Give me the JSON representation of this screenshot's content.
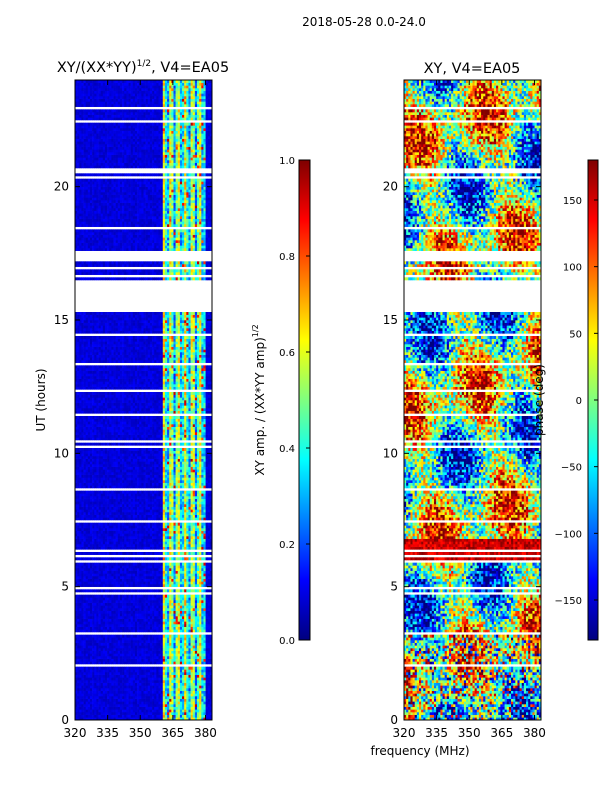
{
  "suptitle": "2018-05-28 0.0-24.0",
  "xlabel": "frequency (MHz)",
  "chart_data": [
    {
      "type": "heatmap",
      "title_main": "XY/(XX*YY)",
      "title_sup": "1/2",
      "title_tail": ", V4=EA05",
      "ylabel": "UT (hours)",
      "xlim": [
        320,
        383
      ],
      "ylim": [
        0,
        24
      ],
      "xticks": [
        320,
        335,
        350,
        365,
        380
      ],
      "yticks": [
        0,
        5,
        10,
        15,
        20
      ],
      "colorbar": {
        "label": "XY amp. / (XX*YY amp)",
        "label_sup": "1/2",
        "range": [
          0.0,
          1.0
        ],
        "ticks": [
          "0.0",
          "0.2",
          "0.4",
          "0.6",
          "0.8",
          "1.0"
        ]
      },
      "gaps_ut": [
        [
          15.3,
          16.5
        ]
      ],
      "bright_band_mhz": [
        360,
        380
      ]
    },
    {
      "type": "heatmap",
      "title": "XY, V4=EA05",
      "xlim": [
        320,
        383
      ],
      "ylim": [
        0,
        24
      ],
      "xticks": [
        320,
        335,
        350,
        365,
        380
      ],
      "yticks": [
        0,
        5,
        10,
        15,
        20
      ],
      "colorbar": {
        "label": "phase (deg)",
        "range": [
          -180,
          180
        ],
        "ticks": [
          "-150",
          "-100",
          "-50",
          "0",
          "50",
          "100",
          "150"
        ]
      },
      "gaps_ut": [
        [
          15.3,
          16.5
        ]
      ]
    }
  ]
}
